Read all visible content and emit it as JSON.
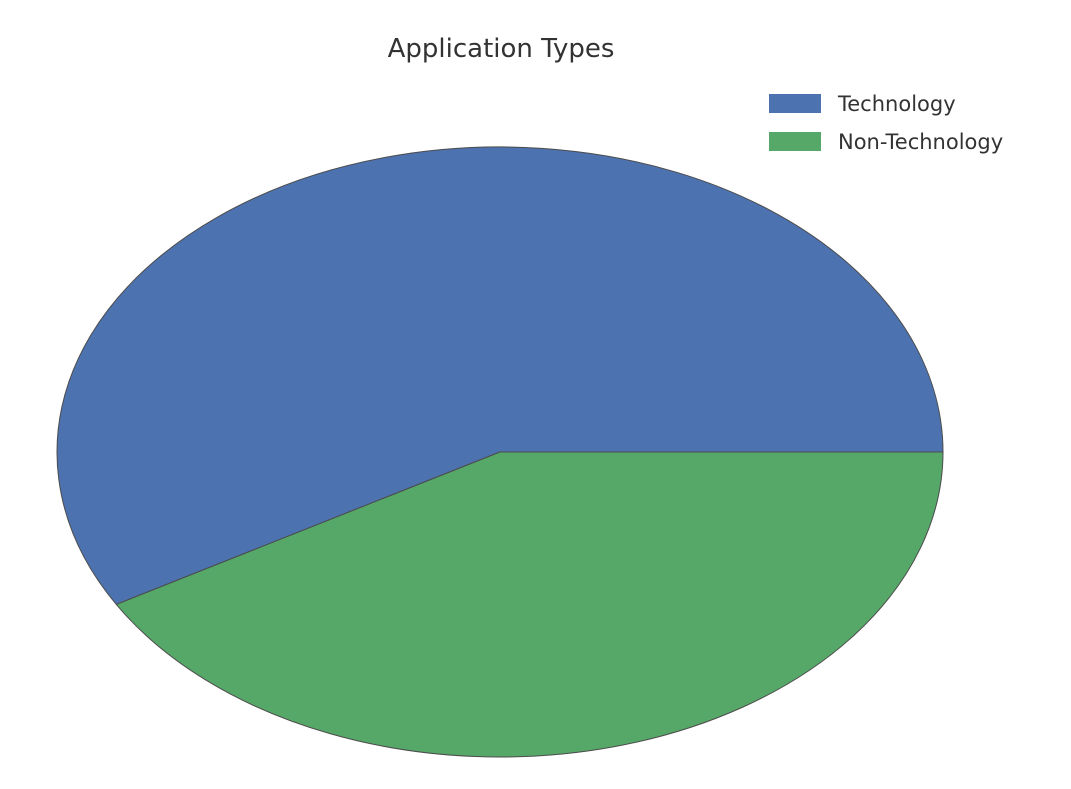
{
  "chart_data": {
    "type": "pie",
    "title": "Application Types",
    "labels": [
      "Technology",
      "Non-Technology"
    ],
    "values": [
      0.5833,
      0.4167
    ],
    "colors": [
      "#4c72b0",
      "#55a868"
    ],
    "start_angle_deg": 0,
    "direction": "counterclockwise",
    "legend_position": "top-right",
    "aspect": "stretched"
  }
}
